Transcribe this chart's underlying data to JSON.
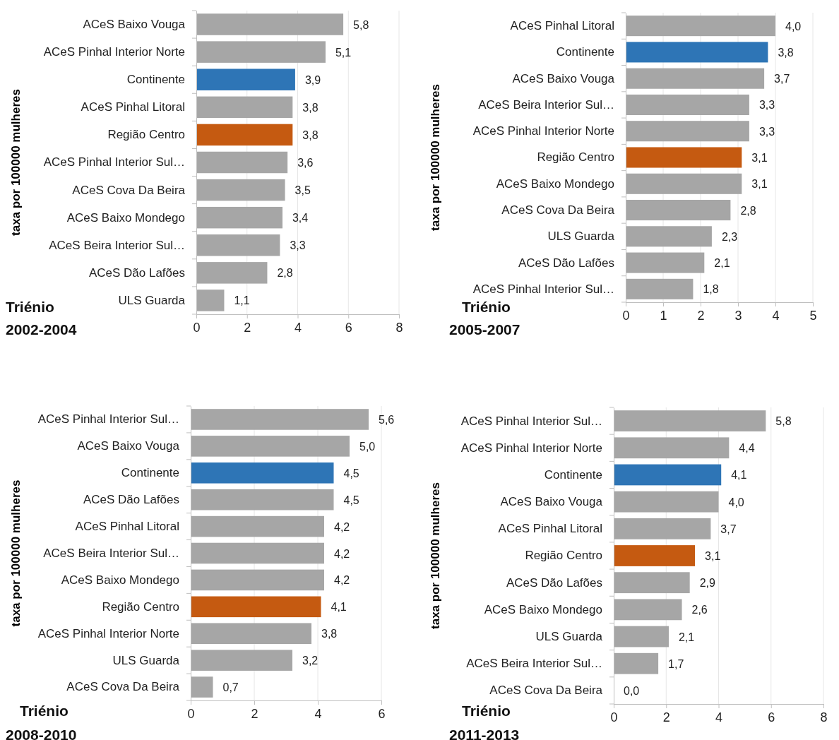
{
  "chart_data": [
    {
      "type": "bar",
      "orientation": "horizontal",
      "title": "Triénio 2002-2004",
      "ylabel": "taxa por 100000 mulheres",
      "categories": [
        "ACeS Baixo Vouga",
        "ACeS Pinhal Interior Norte",
        "Continente",
        "ACeS Pinhal Litoral",
        "Região Centro",
        "ACeS Pinhal Interior Sul…",
        "ACeS Cova Da Beira",
        "ACeS Baixo Mondego",
        "ACeS Beira Interior Sul…",
        "ACeS Dão Lafões",
        "ULS Guarda"
      ],
      "values": [
        5.8,
        5.1,
        3.9,
        3.8,
        3.8,
        3.6,
        3.5,
        3.4,
        3.3,
        2.8,
        1.1
      ],
      "value_labels": [
        "5,8",
        "5,1",
        "3,9",
        "3,8",
        "3,8",
        "3,6",
        "3,5",
        "3,4",
        "3,3",
        "2,8",
        "1,1"
      ],
      "colors": [
        "#a6a6a6",
        "#a6a6a6",
        "#2e75b6",
        "#a6a6a6",
        "#c55a11",
        "#a6a6a6",
        "#a6a6a6",
        "#a6a6a6",
        "#a6a6a6",
        "#a6a6a6",
        "#a6a6a6"
      ],
      "xlim": [
        0,
        8
      ],
      "xticks": [
        0,
        2,
        4,
        6,
        8
      ],
      "grid": "x"
    },
    {
      "type": "bar",
      "orientation": "horizontal",
      "title": "Triénio 2005-2007",
      "ylabel": "taxa por 100000 mulheres",
      "categories": [
        "ACeS Pinhal Litoral",
        "Continente",
        "ACeS Baixo Vouga",
        "ACeS Beira Interior Sul…",
        "ACeS Pinhal Interior Norte",
        "Região Centro",
        "ACeS Baixo Mondego",
        "ACeS Cova Da Beira",
        "ULS Guarda",
        "ACeS Dão Lafões",
        "ACeS Pinhal Interior Sul…"
      ],
      "values": [
        4.0,
        3.8,
        3.7,
        3.3,
        3.3,
        3.1,
        3.1,
        2.8,
        2.3,
        2.1,
        1.8
      ],
      "value_labels": [
        "4,0",
        "3,8",
        "3,7",
        "3,3",
        "3,3",
        "3,1",
        "3,1",
        "2,8",
        "2,3",
        "2,1",
        "1,8"
      ],
      "colors": [
        "#a6a6a6",
        "#2e75b6",
        "#a6a6a6",
        "#a6a6a6",
        "#a6a6a6",
        "#c55a11",
        "#a6a6a6",
        "#a6a6a6",
        "#a6a6a6",
        "#a6a6a6",
        "#a6a6a6"
      ],
      "xlim": [
        0,
        5
      ],
      "xticks": [
        0,
        1,
        2,
        3,
        4,
        5
      ],
      "grid": "x"
    },
    {
      "type": "bar",
      "orientation": "horizontal",
      "title": "Triénio 2008-2010",
      "ylabel": "taxa por 100000 mulheres",
      "categories": [
        "ACeS Pinhal Interior Sul…",
        "ACeS Baixo Vouga",
        "Continente",
        "ACeS Dão Lafões",
        "ACeS Pinhal Litoral",
        "ACeS Beira Interior Sul…",
        "ACeS Baixo Mondego",
        "Região Centro",
        "ACeS Pinhal Interior Norte",
        "ULS Guarda",
        "ACeS Cova Da Beira"
      ],
      "values": [
        5.6,
        5.0,
        4.5,
        4.5,
        4.2,
        4.2,
        4.2,
        4.1,
        3.8,
        3.2,
        0.7
      ],
      "value_labels": [
        "5,6",
        "5,0",
        "4,5",
        "4,5",
        "4,2",
        "4,2",
        "4,2",
        "4,1",
        "3,8",
        "3,2",
        "0,7"
      ],
      "colors": [
        "#a6a6a6",
        "#a6a6a6",
        "#2e75b6",
        "#a6a6a6",
        "#a6a6a6",
        "#a6a6a6",
        "#a6a6a6",
        "#c55a11",
        "#a6a6a6",
        "#a6a6a6",
        "#a6a6a6"
      ],
      "xlim": [
        0,
        6
      ],
      "xticks": [
        0,
        2,
        4,
        6
      ],
      "grid": "x"
    },
    {
      "type": "bar",
      "orientation": "horizontal",
      "title": "Triénio 2011-2013",
      "ylabel": "taxa por 100000 mulheres",
      "categories": [
        "ACeS Pinhal Interior Sul…",
        "ACeS Pinhal Interior Norte",
        "Continente",
        "ACeS Baixo Vouga",
        "ACeS Pinhal Litoral",
        "Região Centro",
        "ACeS Dão Lafões",
        "ACeS Baixo Mondego",
        "ULS Guarda",
        "ACeS Beira Interior Sul…",
        "ACeS Cova Da Beira"
      ],
      "values": [
        5.8,
        4.4,
        4.1,
        4.0,
        3.7,
        3.1,
        2.9,
        2.6,
        2.1,
        1.7,
        0.0
      ],
      "value_labels": [
        "5,8",
        "4,4",
        "4,1",
        "4,0",
        "3,7",
        "3,1",
        "2,9",
        "2,6",
        "2,1",
        "1,7",
        "0,0"
      ],
      "colors": [
        "#a6a6a6",
        "#a6a6a6",
        "#2e75b6",
        "#a6a6a6",
        "#a6a6a6",
        "#c55a11",
        "#a6a6a6",
        "#a6a6a6",
        "#a6a6a6",
        "#a6a6a6",
        "#a6a6a6"
      ],
      "xlim": [
        0,
        8
      ],
      "xticks": [
        0,
        2,
        4,
        6,
        8
      ],
      "grid": "x"
    }
  ]
}
